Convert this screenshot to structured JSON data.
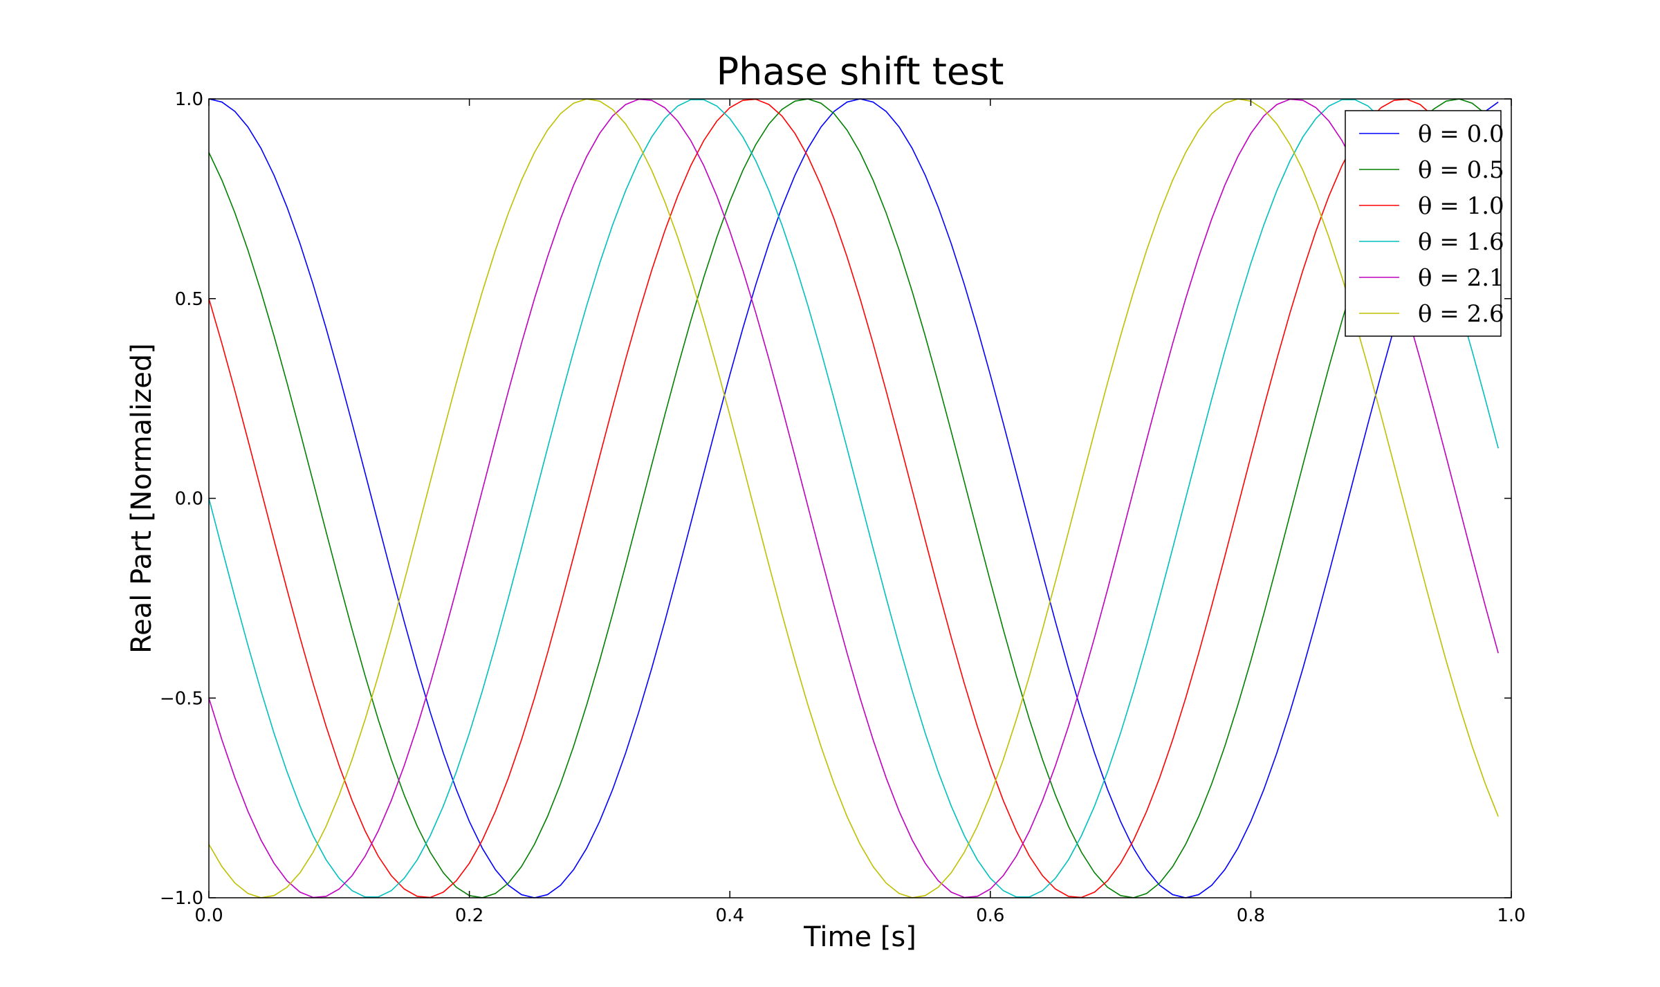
{
  "chart_data": {
    "type": "line",
    "title": "Phase shift test",
    "xlabel": "Time [s]",
    "ylabel": "Real Part [Normalized]",
    "xlim": [
      0.0,
      1.0
    ],
    "ylim": [
      -1.0,
      1.0
    ],
    "xticks": [
      0.0,
      0.2,
      0.4,
      0.6,
      0.8,
      1.0
    ],
    "xtick_labels": [
      "0.0",
      "0.2",
      "0.4",
      "0.6",
      "0.8",
      "1.0"
    ],
    "yticks": [
      1.0,
      0.5,
      0.0,
      -0.5,
      -1.0
    ],
    "ytick_labels": [
      "1.0",
      "0.5",
      "0.0",
      "−0.5",
      "−1.0"
    ],
    "grid": false,
    "legend_position": "top-right",
    "frequency_hz": 2,
    "x": {
      "start": 0.0,
      "stop": 0.99,
      "step": 0.01
    },
    "series": [
      {
        "name": "θ = 0.0",
        "phase": 0.0,
        "color": "#0000ff"
      },
      {
        "name": "θ = 0.5",
        "phase": 0.5236,
        "color": "#008000"
      },
      {
        "name": "θ = 1.0",
        "phase": 1.0472,
        "color": "#ff0000"
      },
      {
        "name": "θ = 1.6",
        "phase": 1.5708,
        "color": "#00bfbf"
      },
      {
        "name": "θ = 2.1",
        "phase": 2.0944,
        "color": "#bf00bf"
      },
      {
        "name": "θ = 2.6",
        "phase": 2.618,
        "color": "#bfbf00"
      }
    ]
  }
}
